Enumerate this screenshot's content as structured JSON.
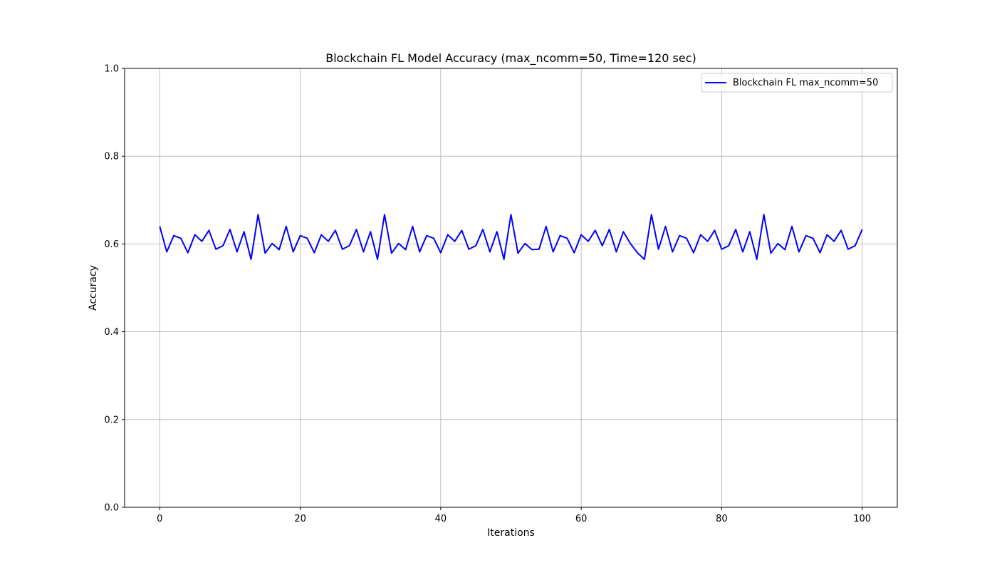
{
  "chart_data": {
    "type": "line",
    "title": "Blockchain FL Model Accuracy (max_ncomm=50, Time=120 sec)",
    "xlabel": "Iterations",
    "ylabel": "Accuracy",
    "xlim": [
      -5,
      105
    ],
    "ylim": [
      0.0,
      1.0
    ],
    "xticks": [
      0,
      20,
      40,
      60,
      80,
      100
    ],
    "xtick_labels": [
      "0",
      "20",
      "40",
      "60",
      "80",
      "100"
    ],
    "yticks": [
      0.0,
      0.2,
      0.4,
      0.6,
      0.8,
      1.0
    ],
    "ytick_labels": [
      "0.0",
      "0.2",
      "0.4",
      "0.6",
      "0.8",
      "1.0"
    ],
    "grid": true,
    "legend_position": "top-right",
    "series": [
      {
        "name": "Blockchain FL max_ncomm=50",
        "color": "#0000ff",
        "x": [
          0,
          1,
          2,
          3,
          4,
          5,
          6,
          7,
          8,
          9,
          10,
          11,
          12,
          13,
          14,
          15,
          16,
          17,
          18,
          19,
          20,
          21,
          22,
          23,
          24,
          25,
          26,
          27,
          28,
          29,
          30,
          31,
          32,
          33,
          34,
          35,
          36,
          37,
          38,
          39,
          40,
          41,
          42,
          43,
          44,
          45,
          46,
          47,
          48,
          49,
          50,
          51,
          52,
          53,
          54,
          55,
          56,
          57,
          58,
          59,
          60,
          61,
          62,
          63,
          64,
          65,
          66,
          67,
          68,
          69,
          70,
          71,
          72,
          73,
          74,
          75,
          76,
          77,
          78,
          79,
          80,
          81,
          82,
          83,
          84,
          85,
          86,
          87,
          88,
          89,
          90,
          91,
          92,
          93,
          94,
          95,
          96,
          97,
          98,
          99,
          100
        ],
        "values": [
          0.64,
          0.582,
          0.619,
          0.613,
          0.58,
          0.621,
          0.606,
          0.631,
          0.588,
          0.596,
          0.633,
          0.582,
          0.628,
          0.565,
          0.667,
          0.579,
          0.601,
          0.587,
          0.64,
          0.582,
          0.619,
          0.613,
          0.58,
          0.621,
          0.606,
          0.631,
          0.588,
          0.596,
          0.633,
          0.582,
          0.628,
          0.565,
          0.667,
          0.579,
          0.601,
          0.587,
          0.64,
          0.582,
          0.619,
          0.613,
          0.58,
          0.621,
          0.606,
          0.631,
          0.588,
          0.596,
          0.633,
          0.582,
          0.628,
          0.565,
          0.667,
          0.579,
          0.601,
          0.587,
          0.588,
          0.64,
          0.582,
          0.619,
          0.613,
          0.58,
          0.621,
          0.606,
          0.631,
          0.596,
          0.633,
          0.582,
          0.628,
          0.601,
          0.58,
          0.565,
          0.667,
          0.588,
          0.64,
          0.582,
          0.619,
          0.613,
          0.58,
          0.621,
          0.606,
          0.631,
          0.588,
          0.596,
          0.633,
          0.582,
          0.628,
          0.565,
          0.667,
          0.579,
          0.601,
          0.587,
          0.64,
          0.582,
          0.619,
          0.613,
          0.58,
          0.621,
          0.606,
          0.631,
          0.588,
          0.596,
          0.633
        ]
      }
    ]
  }
}
